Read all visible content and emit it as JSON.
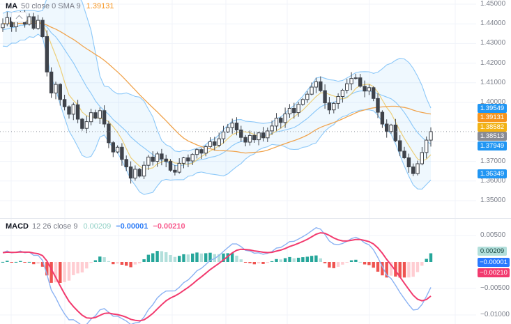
{
  "panes": {
    "price": {
      "legend": {
        "title": "MA",
        "params": "50 close 0 SMA 9",
        "value": "1.39131"
      },
      "axis_ticks": [
        {
          "label": "1.45000",
          "value": 1.45
        },
        {
          "label": "1.44000",
          "value": 1.44
        },
        {
          "label": "1.43000",
          "value": 1.43
        },
        {
          "label": "1.42000",
          "value": 1.42
        },
        {
          "label": "1.41000",
          "value": 1.41
        },
        {
          "label": "1.40000",
          "value": 1.4
        },
        {
          "label": "1.37000",
          "value": 1.37
        },
        {
          "label": "1.36000",
          "value": 1.36
        },
        {
          "label": "1.35000",
          "value": 1.35
        }
      ],
      "badges": [
        {
          "name": "bb-upper-badge",
          "label": "1.39549",
          "value": 1.39549,
          "bg": "#2196f3",
          "fg": "#ffffff"
        },
        {
          "name": "ma50-badge",
          "label": "1.39131",
          "value": 1.39131,
          "bg": "#f7941d",
          "fg": "#ffffff"
        },
        {
          "name": "sma9-badge",
          "label": "1.38582",
          "value": 1.38582,
          "bg": "#f2b214",
          "fg": "#ffffff"
        },
        {
          "name": "last-price-badge",
          "label": "1.38513",
          "value": 1.38513,
          "bg": "#888b94",
          "fg": "#ffffff"
        },
        {
          "name": "bb-basis-badge",
          "label": "1.37949",
          "value": 1.37949,
          "bg": "#2196f3",
          "fg": "#ffffff"
        },
        {
          "name": "bb-lower-badge",
          "label": "1.36349",
          "value": 1.36349,
          "bg": "#2196f3",
          "fg": "#ffffff"
        }
      ]
    },
    "macd": {
      "legend": {
        "title": "MACD",
        "params": "12 26 close 9",
        "values": [
          {
            "label": "0.00209"
          },
          {
            "label": "−0.00001"
          },
          {
            "label": "−0.00210"
          }
        ]
      },
      "axis_ticks": [
        {
          "label": "0.00500",
          "value": 0.005
        },
        {
          "label": "−0.00500",
          "value": -0.005
        },
        {
          "label": "−0.01000",
          "value": -0.01
        }
      ],
      "badges": [
        {
          "name": "macd-histogram-badge",
          "label": "0.00209",
          "value": 0.00209,
          "bg": "#b2dfdb",
          "fg": "#16433d"
        },
        {
          "name": "macd-line-badge",
          "label": "−0.00001",
          "value": -1e-05,
          "bg": "#2979ff",
          "fg": "#ffffff"
        },
        {
          "name": "macd-signal-badge",
          "label": "−0.00210",
          "value": -0.0021,
          "bg": "#f23a6e",
          "fg": "#ffffff"
        }
      ]
    }
  },
  "chart_data": [
    {
      "type": "candlestick",
      "pane": "price",
      "title": "",
      "ylim": [
        1.3415,
        1.4528
      ],
      "grid": true,
      "last_price": 1.38513,
      "first_open": 1.438,
      "closes": [
        1.44,
        1.4432,
        1.4385,
        1.4421,
        1.444,
        1.4398,
        1.4436,
        1.4377,
        1.4418,
        1.4335,
        1.4155,
        1.4048,
        1.4092,
        1.4015,
        1.3978,
        1.394,
        1.3988,
        1.3915,
        1.3868,
        1.3902,
        1.3948,
        1.392,
        1.3958,
        1.389,
        1.3795,
        1.3748,
        1.3772,
        1.371,
        1.3672,
        1.3615,
        1.366,
        1.3625,
        1.368,
        1.3722,
        1.37,
        1.3738,
        1.3712,
        1.37,
        1.3655,
        1.3645,
        1.369,
        1.3718,
        1.3702,
        1.3735,
        1.376,
        1.3742,
        1.3775,
        1.38,
        1.3782,
        1.3815,
        1.385,
        1.3872,
        1.3895,
        1.386,
        1.3822,
        1.3798,
        1.3832,
        1.381,
        1.3845,
        1.382,
        1.3855,
        1.388,
        1.392,
        1.3898,
        1.3942,
        1.397,
        1.3948,
        1.399,
        1.4015,
        1.4042,
        1.4078,
        1.4105,
        1.406,
        1.3998,
        1.3962,
        1.3995,
        1.403,
        1.4062,
        1.4095,
        1.4122,
        1.4125,
        1.4082,
        1.4058,
        1.4075,
        1.402,
        1.395,
        1.389,
        1.3852,
        1.3885,
        1.3805,
        1.3752,
        1.3718,
        1.3672,
        1.3638,
        1.3688,
        1.3745,
        1.3808,
        1.38513
      ],
      "indicators": {
        "ma50": {
          "label": "MA 50 close 0 SMA 9",
          "current": 1.39131,
          "color": "#f0a44e"
        },
        "sma9": {
          "current": 1.38582,
          "color": "#edcf79"
        },
        "bollinger": {
          "period": 20,
          "stddev_mult": 2,
          "upper": 1.39549,
          "basis": 1.37949,
          "lower": 1.36349,
          "line_color": "#2196f3",
          "fill_color": "rgba(33,150,243,0.07)"
        }
      },
      "candle_colors": {
        "up_fill": "#ffffff",
        "down_fill": "#3f434a",
        "outline": "#3f434a"
      }
    },
    {
      "type": "macd",
      "pane": "macd",
      "params": {
        "fast": 12,
        "slow": 26,
        "source": "close",
        "signal": 9
      },
      "ylim": [
        -0.0118,
        0.0083
      ],
      "grid": true,
      "current": {
        "histogram": 0.00209,
        "macd": -1e-05,
        "signal": -0.0021
      },
      "colors": {
        "macd_line": "#8ab2f3",
        "signal_line": "#f23a6e",
        "hist_grow_above": "#26a69a",
        "hist_fall_above": "#b2dfdb",
        "hist_grow_below": "#ffcdd2",
        "hist_fall_below": "#ef5350"
      }
    }
  ],
  "style": {
    "grid_color": "#f0f3fa",
    "last_price_line_color": "#9598a1",
    "axis_text_color": "#7b7f8a"
  }
}
